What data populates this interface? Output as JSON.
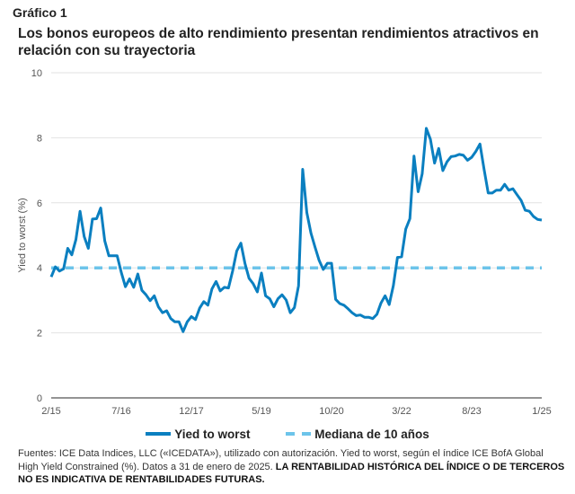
{
  "figure_label": "Gráfico 1",
  "chart_data": {
    "type": "line",
    "title": "Los bonos europeos de alto rendimiento presentan rendimientos atractivos en relación con su trayectoria",
    "xlabel": "",
    "ylabel": "Yied to worst (%)",
    "ylim": [
      0,
      10
    ],
    "yticks": [
      "0",
      "2",
      "4",
      "6",
      "8",
      "10"
    ],
    "xticks": [
      "2/15",
      "7/16",
      "12/17",
      "5/19",
      "10/20",
      "3/22",
      "8/23",
      "1/25"
    ],
    "x_start": "2015-02",
    "x_end": "2025-01",
    "x_frequency": "monthly",
    "grid": true,
    "legend_position": "bottom",
    "series": [
      {
        "name": "Yied to worst",
        "color": "#0a7fc0",
        "style": "solid",
        "values": [
          3.72,
          4.03,
          3.9,
          3.97,
          4.6,
          4.4,
          4.87,
          5.74,
          4.96,
          4.6,
          5.5,
          5.51,
          5.84,
          4.83,
          4.37,
          4.37,
          4.37,
          3.86,
          3.42,
          3.66,
          3.4,
          3.81,
          3.31,
          3.17,
          2.99,
          3.14,
          2.8,
          2.62,
          2.68,
          2.44,
          2.34,
          2.34,
          2.04,
          2.34,
          2.5,
          2.41,
          2.76,
          2.96,
          2.85,
          3.35,
          3.58,
          3.29,
          3.4,
          3.38,
          3.9,
          4.52,
          4.76,
          4.14,
          3.68,
          3.51,
          3.26,
          3.84,
          3.14,
          3.05,
          2.8,
          3.05,
          3.17,
          3.01,
          2.62,
          2.78,
          3.45,
          7.03,
          5.7,
          5.07,
          4.64,
          4.23,
          3.95,
          4.14,
          4.14,
          3.03,
          2.9,
          2.85,
          2.74,
          2.62,
          2.53,
          2.55,
          2.48,
          2.48,
          2.44,
          2.57,
          2.92,
          3.14,
          2.87,
          3.45,
          4.32,
          4.34,
          5.19,
          5.51,
          7.44,
          6.34,
          6.89,
          8.29,
          7.95,
          7.22,
          7.67,
          6.99,
          7.26,
          7.42,
          7.44,
          7.49,
          7.46,
          7.31,
          7.4,
          7.58,
          7.81,
          7.03,
          6.3,
          6.3,
          6.39,
          6.39,
          6.57,
          6.39,
          6.43,
          6.25,
          6.07,
          5.77,
          5.74,
          5.58,
          5.49,
          5.47
        ]
      },
      {
        "name": "Mediana de 10 años",
        "color": "#6cc4ea",
        "style": "dashed",
        "values": [
          4.0
        ]
      }
    ]
  },
  "footnote": {
    "normal": "Fuentes: ICE Data Indices, LLC («ICEDATA»), utilizado con autorización. Yied to worst, según el índice ICE BofA Global High Yield Constrained (%). Datos a 31 de enero de 2025. ",
    "bold": "LA RENTABILIDAD HISTÓRICA DEL ÍNDICE O DE TERCEROS NO ES INDICATIVA DE RENTABILIDADES FUTURAS."
  }
}
